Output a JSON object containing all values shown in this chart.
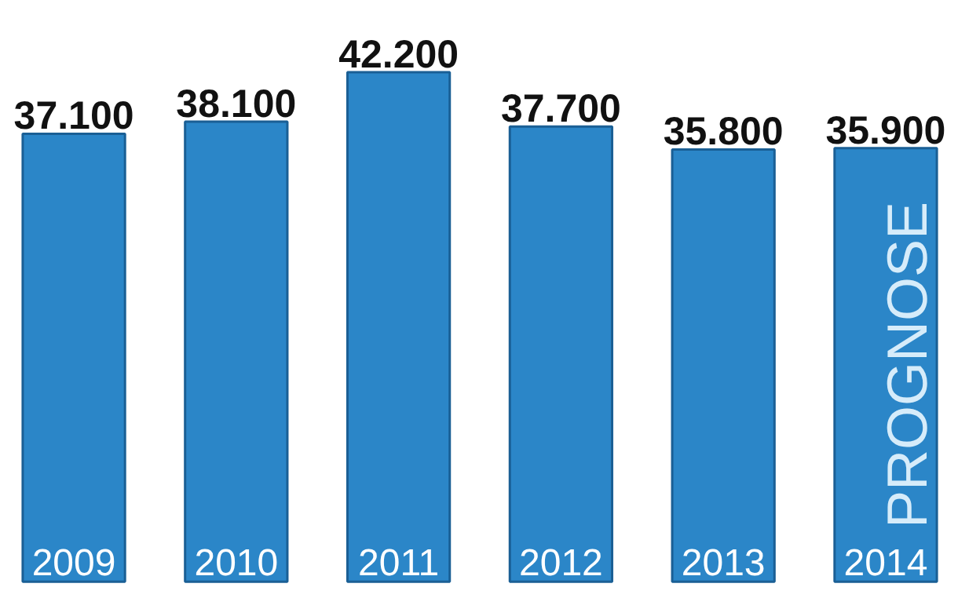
{
  "chart_data": {
    "type": "bar",
    "categories": [
      "2009",
      "2010",
      "2011",
      "2012",
      "2013",
      "2014"
    ],
    "values": [
      37100,
      38100,
      42200,
      37700,
      35800,
      35900
    ],
    "value_labels": [
      "37.100",
      "38.100",
      "42.200",
      "37.700",
      "35.800",
      "35.900"
    ],
    "color": "#2b86c8",
    "annotations": [
      "PROGNOSE"
    ],
    "grid": false
  }
}
